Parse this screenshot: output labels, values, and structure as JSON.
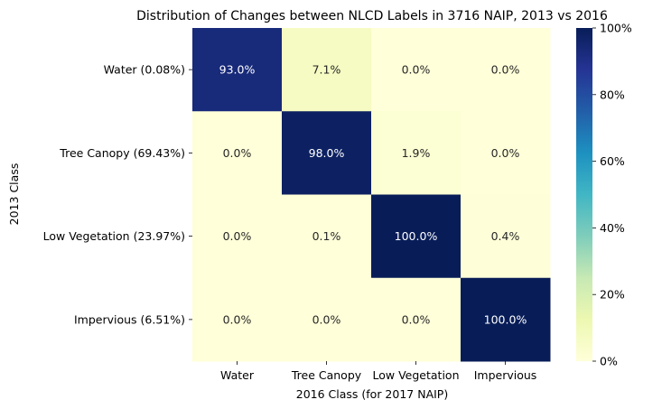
{
  "chart_data": {
    "type": "heatmap",
    "title": "Distribution of Changes between NLCD Labels in 3716 NAIP, 2013 vs 2016",
    "xlabel": "2016 Class (for 2017 NAIP)",
    "ylabel": "2013 Class",
    "x_categories": [
      "Water",
      "Tree Canopy",
      "Low Vegetation",
      "Impervious"
    ],
    "y_categories": [
      "Water (0.08%)",
      "Tree Canopy (69.43%)",
      "Low Vegetation (23.97%)",
      "Impervious (6.51%)"
    ],
    "values": [
      [
        93.0,
        7.1,
        0.0,
        0.0
      ],
      [
        0.0,
        98.0,
        1.9,
        0.0
      ],
      [
        0.0,
        0.1,
        100.0,
        0.4
      ],
      [
        0.0,
        0.0,
        0.0,
        100.0
      ]
    ],
    "cell_labels": [
      [
        "93.0%",
        "7.1%",
        "0.0%",
        "0.0%"
      ],
      [
        "0.0%",
        "98.0%",
        "1.9%",
        "0.0%"
      ],
      [
        "0.0%",
        "0.1%",
        "100.0%",
        "0.4%"
      ],
      [
        "0.0%",
        "0.0%",
        "0.0%",
        "100.0%"
      ]
    ],
    "colorbar": {
      "colormap": "YlGnBu",
      "range": [
        0,
        100
      ],
      "ticks": [
        "0%",
        "20%",
        "40%",
        "60%",
        "80%",
        "100%"
      ]
    }
  }
}
